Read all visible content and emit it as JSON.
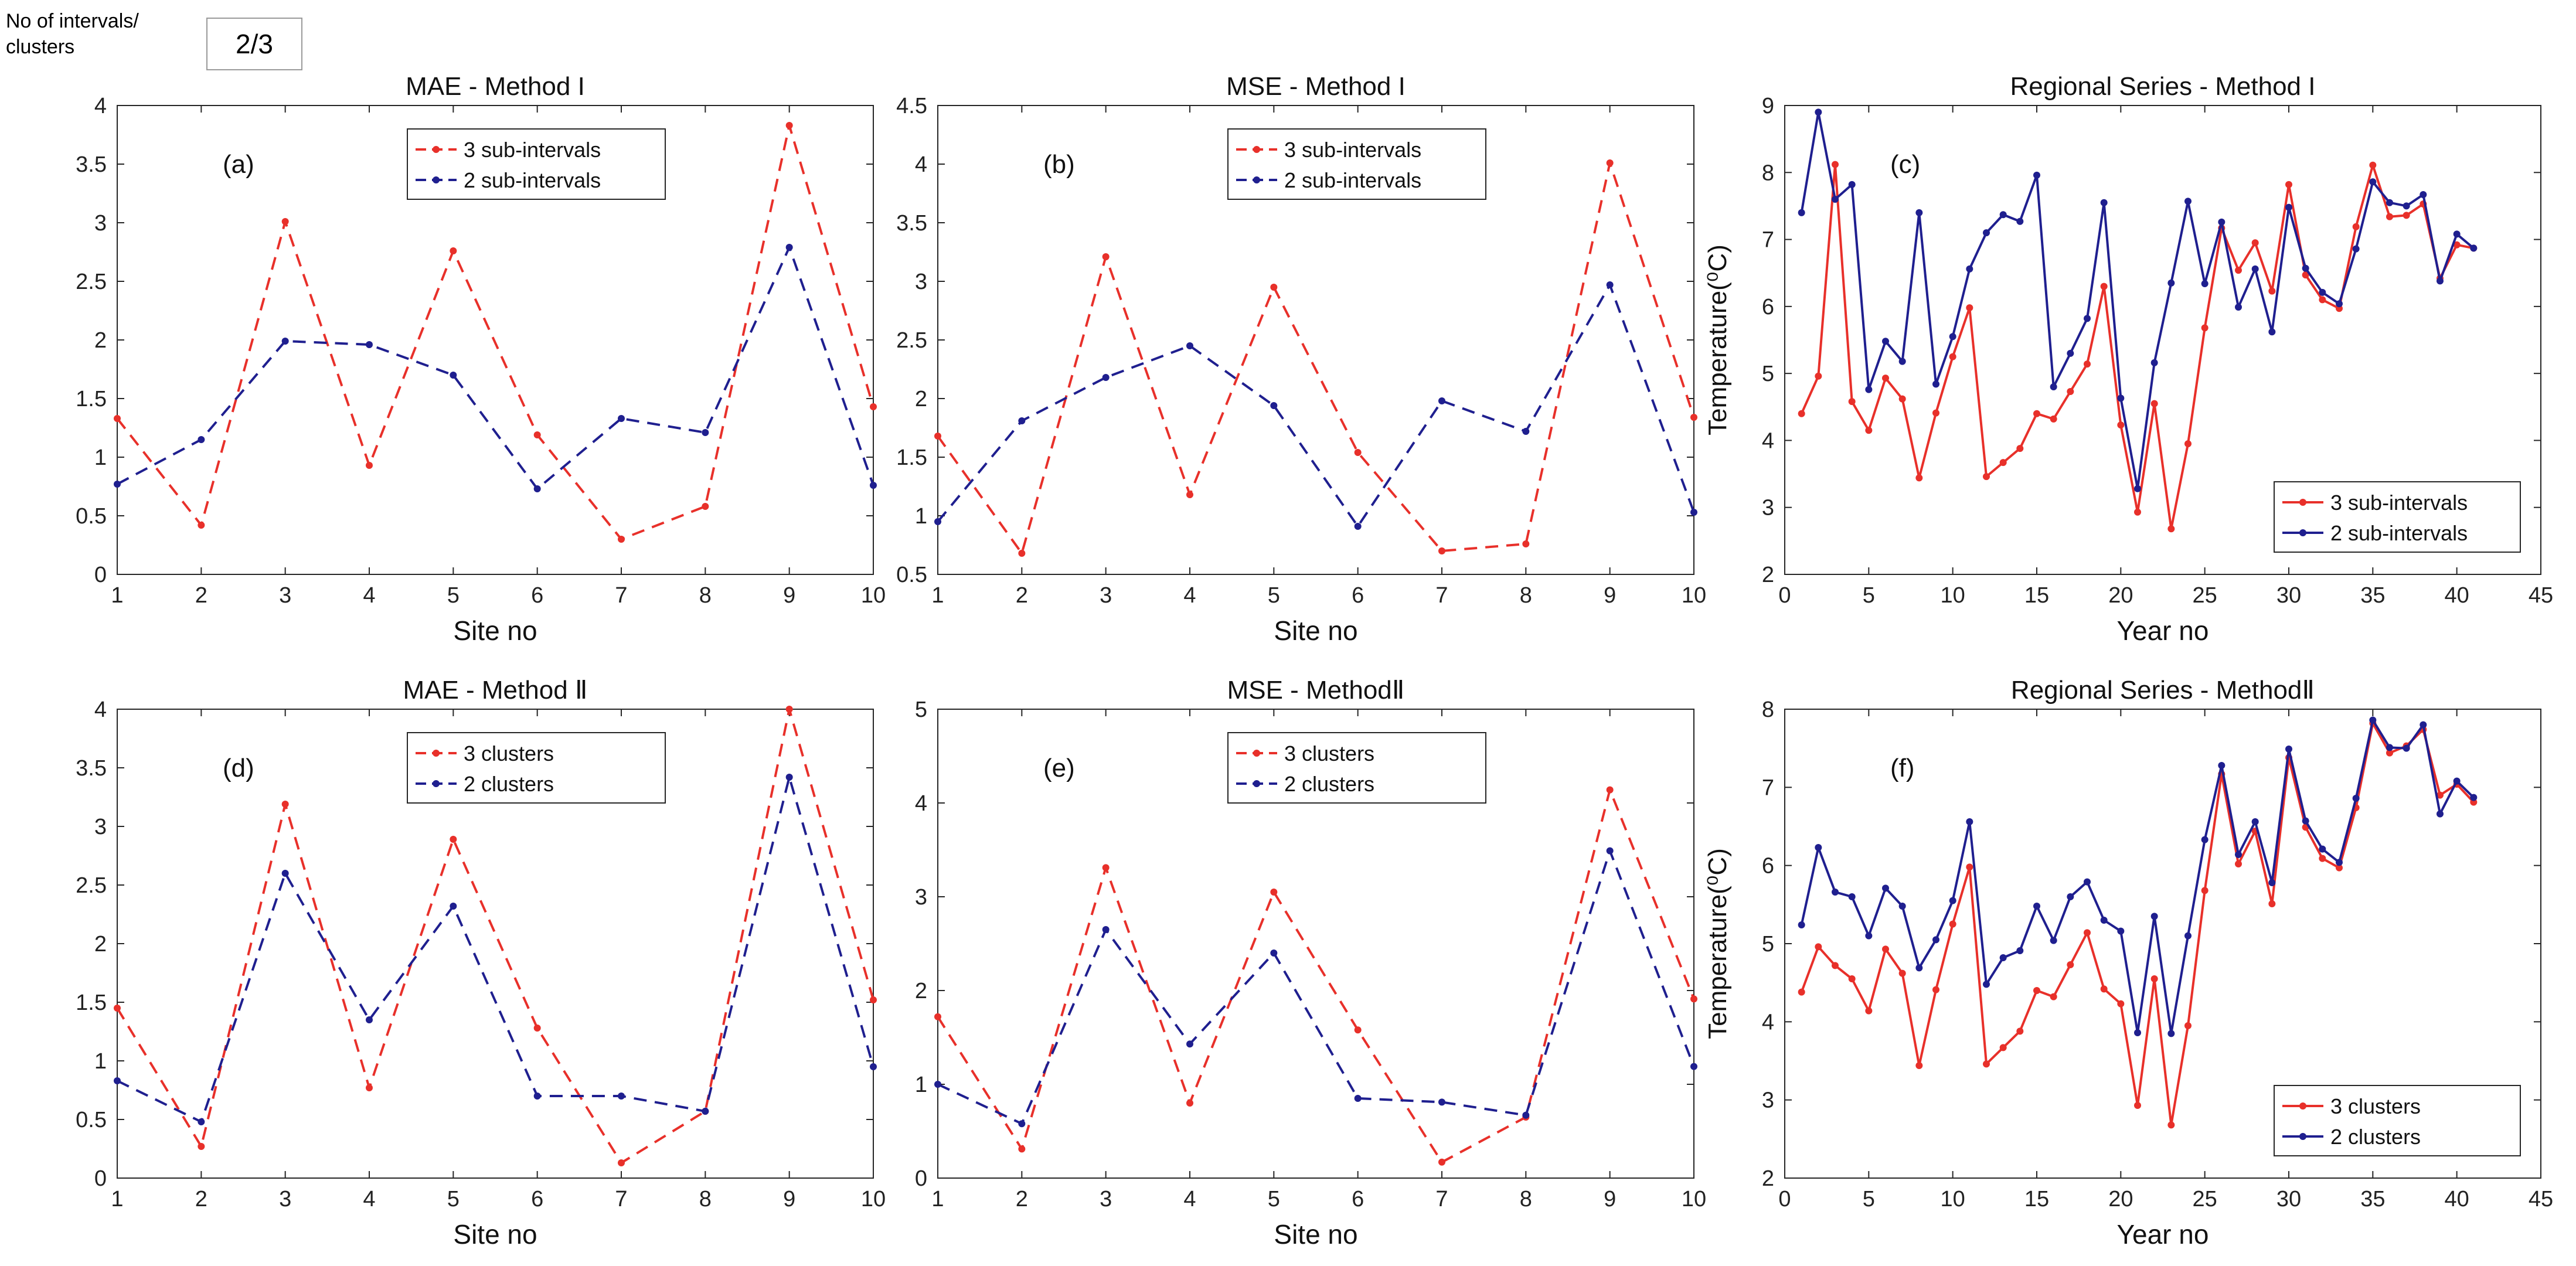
{
  "control": {
    "label": "No of intervals/ clusters",
    "value": "2/3"
  },
  "colors": {
    "red": "#e8302a",
    "blue": "#1f1f8f",
    "axis": "#262626",
    "grid": "#d6d6d6"
  },
  "chart_data": [
    {
      "type": "line",
      "title": "MAE - Method I",
      "panel_label": "(a)",
      "xlabel": "Site no",
      "ylabel": "",
      "xlim": [
        1,
        10
      ],
      "ylim": [
        0,
        4
      ],
      "xticks": [
        "1",
        "2",
        "3",
        "4",
        "5",
        "6",
        "7",
        "8",
        "9",
        "10"
      ],
      "yticks": [
        "0",
        "0.5",
        "1",
        "1.5",
        "2",
        "2.5",
        "3",
        "3.5",
        "4"
      ],
      "legend_position": "top-center",
      "dashed": true,
      "series": [
        {
          "name": "3 sub-intervals",
          "color": "red",
          "x": [
            1,
            2,
            3,
            4,
            5,
            6,
            7,
            8,
            9,
            10
          ],
          "values": [
            1.33,
            0.42,
            3.01,
            0.93,
            2.76,
            1.19,
            0.3,
            0.58,
            3.83,
            1.43
          ]
        },
        {
          "name": "2 sub-intervals",
          "color": "blue",
          "x": [
            1,
            2,
            3,
            4,
            5,
            6,
            7,
            8,
            9,
            10
          ],
          "values": [
            0.77,
            1.15,
            1.99,
            1.96,
            1.7,
            0.73,
            1.33,
            1.21,
            2.79,
            0.76
          ]
        }
      ]
    },
    {
      "type": "line",
      "title": "MSE -  Method I",
      "panel_label": "(b)",
      "xlabel": "Site no",
      "ylabel": "",
      "xlim": [
        1,
        10
      ],
      "ylim": [
        0.5,
        4.5
      ],
      "xticks": [
        "1",
        "2",
        "3",
        "4",
        "5",
        "6",
        "7",
        "8",
        "9",
        "10"
      ],
      "yticks": [
        "0.5",
        "1",
        "1.5",
        "2",
        "2.5",
        "3",
        "3.5",
        "4",
        "4.5"
      ],
      "legend_position": "top-center",
      "dashed": true,
      "series": [
        {
          "name": "3 sub-intervals",
          "color": "red",
          "x": [
            1,
            2,
            3,
            4,
            5,
            6,
            7,
            8,
            9,
            10
          ],
          "values": [
            1.68,
            0.68,
            3.21,
            1.18,
            2.95,
            1.54,
            0.7,
            0.76,
            4.01,
            1.84
          ]
        },
        {
          "name": "2 sub-intervals",
          "color": "blue",
          "x": [
            1,
            2,
            3,
            4,
            5,
            6,
            7,
            8,
            9,
            10
          ],
          "values": [
            0.95,
            1.81,
            2.18,
            2.45,
            1.94,
            0.91,
            1.98,
            1.72,
            2.97,
            1.03
          ]
        }
      ]
    },
    {
      "type": "line",
      "title": "Regional Series - Method I",
      "panel_label": "(c)",
      "xlabel": "Year no",
      "ylabel": "Temperature(⁰C)",
      "xlim": [
        0,
        45
      ],
      "ylim": [
        2,
        9
      ],
      "xticks": [
        "0",
        "5",
        "10",
        "15",
        "20",
        "25",
        "30",
        "35",
        "40",
        "45"
      ],
      "yticks": [
        "2",
        "3",
        "4",
        "5",
        "6",
        "7",
        "8",
        "9"
      ],
      "legend_position": "bottom-right",
      "dashed": false,
      "series": [
        {
          "name": "3 sub-intervals",
          "color": "red",
          "x": [
            1,
            2,
            3,
            4,
            5,
            6,
            7,
            8,
            9,
            10,
            11,
            12,
            13,
            14,
            15,
            16,
            17,
            18,
            19,
            20,
            21,
            22,
            23,
            24,
            25,
            26,
            27,
            28,
            29,
            30,
            31,
            32,
            33,
            34,
            35,
            36,
            37,
            38,
            39,
            40,
            41
          ],
          "values": [
            4.4,
            4.96,
            8.12,
            4.58,
            4.15,
            4.93,
            4.62,
            3.44,
            4.41,
            5.25,
            5.98,
            3.46,
            3.67,
            3.88,
            4.4,
            4.32,
            4.73,
            5.14,
            6.3,
            4.23,
            2.93,
            4.55,
            2.68,
            3.95,
            5.68,
            7.17,
            6.54,
            6.95,
            6.23,
            7.82,
            6.47,
            6.1,
            5.97,
            7.19,
            8.11,
            7.34,
            7.36,
            7.53,
            6.42,
            6.92,
            6.87
          ]
        },
        {
          "name": "2 sub-intervals",
          "color": "blue",
          "x": [
            1,
            2,
            3,
            4,
            5,
            6,
            7,
            8,
            9,
            10,
            11,
            12,
            13,
            14,
            15,
            16,
            17,
            18,
            19,
            20,
            21,
            22,
            23,
            24,
            25,
            26,
            27,
            28,
            29,
            30,
            31,
            32,
            33,
            34,
            35,
            36,
            37,
            38,
            39,
            40,
            41
          ],
          "values": [
            7.4,
            8.9,
            7.6,
            7.82,
            4.76,
            5.48,
            5.18,
            7.4,
            4.84,
            5.55,
            6.56,
            7.1,
            7.37,
            7.27,
            7.96,
            4.8,
            5.3,
            5.82,
            7.55,
            4.63,
            3.28,
            5.16,
            6.35,
            7.57,
            6.34,
            7.26,
            5.99,
            6.56,
            5.62,
            7.48,
            6.57,
            6.21,
            6.04,
            6.86,
            7.86,
            7.55,
            7.5,
            7.67,
            6.38,
            7.08,
            6.87
          ]
        }
      ]
    },
    {
      "type": "line",
      "title": "MAE - Method Ⅱ",
      "panel_label": "(d)",
      "xlabel": "Site no",
      "ylabel": "",
      "xlim": [
        1,
        10
      ],
      "ylim": [
        0,
        4
      ],
      "xticks": [
        "1",
        "2",
        "3",
        "4",
        "5",
        "6",
        "7",
        "8",
        "9",
        "10"
      ],
      "yticks": [
        "0",
        "0.5",
        "1",
        "1.5",
        "2",
        "2.5",
        "3",
        "3.5",
        "4"
      ],
      "legend_position": "top-center",
      "dashed": true,
      "series": [
        {
          "name": "3 clusters",
          "color": "red",
          "x": [
            1,
            2,
            3,
            4,
            5,
            6,
            7,
            8,
            9,
            10
          ],
          "values": [
            1.45,
            0.27,
            3.19,
            0.77,
            2.89,
            1.28,
            0.13,
            0.57,
            4.0,
            1.52
          ]
        },
        {
          "name": "2 clusters",
          "color": "blue",
          "x": [
            1,
            2,
            3,
            4,
            5,
            6,
            7,
            8,
            9,
            10
          ],
          "values": [
            0.83,
            0.48,
            2.6,
            1.35,
            2.32,
            0.7,
            0.7,
            0.57,
            3.42,
            0.95
          ]
        }
      ]
    },
    {
      "type": "line",
      "title": "MSE -  MethodⅡ",
      "panel_label": "(e)",
      "xlabel": "Site no",
      "ylabel": "",
      "xlim": [
        1,
        10
      ],
      "ylim": [
        0,
        5
      ],
      "xticks": [
        "1",
        "2",
        "3",
        "4",
        "5",
        "6",
        "7",
        "8",
        "9",
        "10"
      ],
      "yticks": [
        "0",
        "1",
        "2",
        "3",
        "4",
        "5"
      ],
      "legend_position": "top-center",
      "dashed": true,
      "series": [
        {
          "name": "3 clusters",
          "color": "red",
          "x": [
            1,
            2,
            3,
            4,
            5,
            6,
            7,
            8,
            9,
            10
          ],
          "values": [
            1.72,
            0.31,
            3.31,
            0.8,
            3.05,
            1.58,
            0.17,
            0.65,
            4.14,
            1.91
          ]
        },
        {
          "name": "2 clusters",
          "color": "blue",
          "x": [
            1,
            2,
            3,
            4,
            5,
            6,
            7,
            8,
            9,
            10
          ],
          "values": [
            1.0,
            0.58,
            2.65,
            1.43,
            2.4,
            0.85,
            0.81,
            0.67,
            3.49,
            1.19
          ]
        }
      ]
    },
    {
      "type": "line",
      "title": "Regional Series - MethodⅡ",
      "panel_label": "(f)",
      "xlabel": "Year no",
      "ylabel": "Temperature(⁰C)",
      "xlim": [
        0,
        45
      ],
      "ylim": [
        2,
        8
      ],
      "xticks": [
        "0",
        "5",
        "10",
        "15",
        "20",
        "25",
        "30",
        "35",
        "40",
        "45"
      ],
      "yticks": [
        "2",
        "3",
        "4",
        "5",
        "6",
        "7",
        "8"
      ],
      "legend_position": "bottom-right",
      "dashed": false,
      "series": [
        {
          "name": "3 clusters",
          "color": "red",
          "x": [
            1,
            2,
            3,
            4,
            5,
            6,
            7,
            8,
            9,
            10,
            11,
            12,
            13,
            14,
            15,
            16,
            17,
            18,
            19,
            20,
            21,
            22,
            23,
            24,
            25,
            26,
            27,
            28,
            29,
            30,
            31,
            32,
            33,
            34,
            35,
            36,
            37,
            38,
            39,
            40,
            41
          ],
          "values": [
            4.38,
            4.96,
            4.72,
            4.55,
            4.14,
            4.93,
            4.62,
            3.44,
            4.41,
            5.25,
            5.98,
            3.46,
            3.67,
            3.88,
            4.4,
            4.32,
            4.73,
            5.14,
            4.42,
            4.23,
            2.93,
            4.55,
            2.68,
            3.95,
            5.68,
            7.17,
            6.02,
            6.44,
            5.51,
            7.38,
            6.49,
            6.09,
            5.97,
            6.74,
            7.82,
            7.44,
            7.53,
            7.74,
            6.9,
            7.04,
            6.81
          ]
        },
        {
          "name": "2 clusters",
          "color": "blue",
          "x": [
            1,
            2,
            3,
            4,
            5,
            6,
            7,
            8,
            9,
            10,
            11,
            12,
            13,
            14,
            15,
            16,
            17,
            18,
            19,
            20,
            21,
            22,
            23,
            24,
            25,
            26,
            27,
            28,
            29,
            30,
            31,
            32,
            33,
            34,
            35,
            36,
            37,
            38,
            39,
            40,
            41
          ],
          "values": [
            5.24,
            6.23,
            5.66,
            5.6,
            5.1,
            5.71,
            5.48,
            4.69,
            5.05,
            5.55,
            6.56,
            4.48,
            4.82,
            4.91,
            5.48,
            5.04,
            5.6,
            5.79,
            5.3,
            5.16,
            3.86,
            5.35,
            3.85,
            5.1,
            6.33,
            7.28,
            6.14,
            6.56,
            5.78,
            7.49,
            6.57,
            6.21,
            6.04,
            6.86,
            7.86,
            7.51,
            7.5,
            7.8,
            6.66,
            7.08,
            6.87
          ]
        }
      ]
    }
  ]
}
